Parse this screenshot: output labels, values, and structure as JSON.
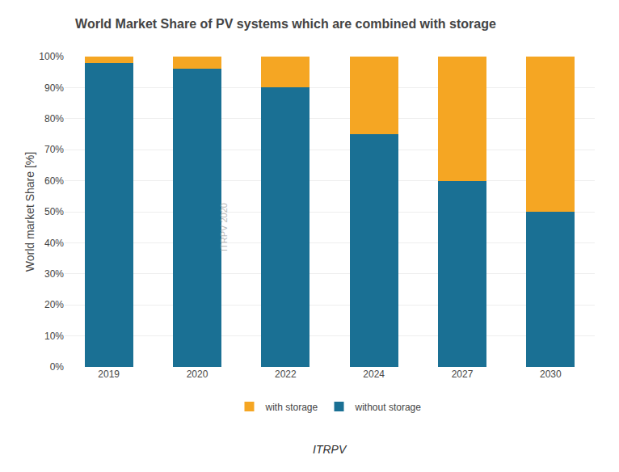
{
  "chart_data": {
    "type": "bar",
    "stacked": true,
    "title": "World Market Share of PV systems which are combined with storage",
    "ylabel": "World market Share [%]",
    "categories": [
      "2019",
      "2020",
      "2022",
      "2024",
      "2027",
      "2030"
    ],
    "series": [
      {
        "name": "without storage",
        "color": "#1a7094",
        "values": [
          98,
          96,
          90,
          75,
          60,
          50
        ]
      },
      {
        "name": "with storage",
        "color": "#f5a623",
        "values": [
          2,
          4,
          10,
          25,
          40,
          50
        ]
      }
    ],
    "ylim": [
      0,
      100
    ],
    "yticks": [
      {
        "value": 0,
        "label": "0%"
      },
      {
        "value": 10,
        "label": "10%"
      },
      {
        "value": 20,
        "label": "20%"
      },
      {
        "value": 30,
        "label": "30%"
      },
      {
        "value": 40,
        "label": "40%"
      },
      {
        "value": 50,
        "label": "50%"
      },
      {
        "value": 60,
        "label": "60%"
      },
      {
        "value": 70,
        "label": "70%"
      },
      {
        "value": 80,
        "label": "80%"
      },
      {
        "value": 90,
        "label": "90%"
      },
      {
        "value": 100,
        "label": "100%"
      }
    ],
    "grid": true,
    "legend": "bottom",
    "annotations": [
      "ITRPV 2020",
      "ITRPV"
    ]
  }
}
